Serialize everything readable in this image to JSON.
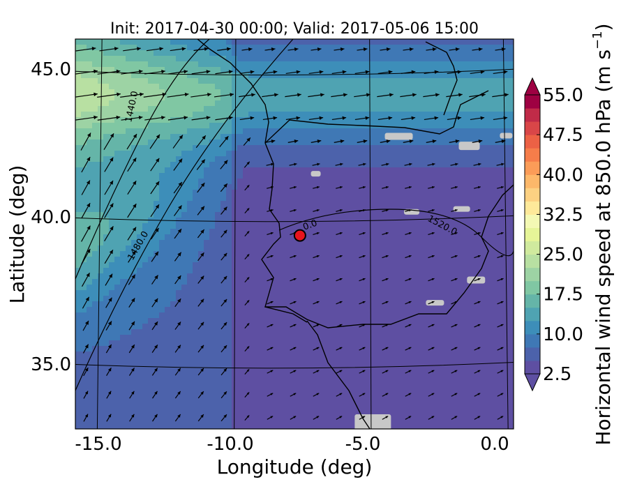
{
  "chart_data": {
    "type": "heatmap",
    "title": "Init: 2017-04-30 00:00; Valid: 2017-05-06 15:00",
    "xlabel": "Longitude (deg)",
    "ylabel": "Latitude (deg)",
    "xlim": [
      -15.8,
      0.2
    ],
    "ylim": [
      32.8,
      46.1
    ],
    "xticks": [
      "-15.0",
      "-10.0",
      "-5.0",
      "0.0"
    ],
    "xtick_values": [
      -15,
      -10,
      -5,
      0
    ],
    "yticks": [
      "35.0",
      "40.0",
      "45.0"
    ],
    "ytick_values": [
      35,
      40,
      45
    ],
    "graticule": true,
    "colorbar": {
      "label": "Horizontal wind speed at 850.0 hPa (m s",
      "label_superscript": "−1",
      "label_suffix": ")",
      "tick_labels": [
        "2.5",
        "10.0",
        "17.5",
        "25.0",
        "32.5",
        "40.0",
        "47.5",
        "55.0"
      ],
      "tick_values": [
        2.5,
        10,
        17.5,
        25,
        32.5,
        40,
        47.5,
        55
      ],
      "level_min": 2.5,
      "level_max": 55,
      "level_step": 2.5,
      "extend": "both",
      "colors": [
        "#5e4fa2",
        "#4c62ab",
        "#3f78b5",
        "#3d8eb9",
        "#4fa3b2",
        "#65b5a8",
        "#80c7a3",
        "#9dd3a4",
        "#b8e0a2",
        "#d0ea9e",
        "#e6f598",
        "#f4f9b4",
        "#fee99a",
        "#fdd182",
        "#fdb86a",
        "#fb9c58",
        "#f67d4a",
        "#ec6145",
        "#d94648",
        "#c02b48",
        "#9e0142"
      ],
      "under_color": "#5e4fa2",
      "over_color": "#9e0142"
    },
    "contours": {
      "quantity": "850 hPa geopotential height",
      "labels": [
        "1440.0",
        "1480.0",
        "1520.0",
        "0.0"
      ]
    },
    "marker": {
      "lon": -7.6,
      "lat": 39.4,
      "color": "#e8141e"
    },
    "missing_color": "#c8c8c8",
    "wind_field": "arrows show 850 hPa wind vectors; strongest flow toward the northeast over the Atlantic west of Iberia and eastward over the Bay of Biscay"
  }
}
